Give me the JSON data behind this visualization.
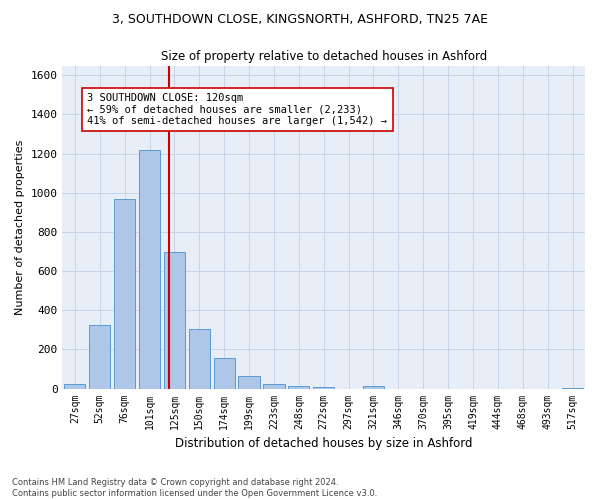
{
  "title1": "3, SOUTHDOWN CLOSE, KINGSNORTH, ASHFORD, TN25 7AE",
  "title2": "Size of property relative to detached houses in Ashford",
  "xlabel": "Distribution of detached houses by size in Ashford",
  "ylabel": "Number of detached properties",
  "footnote": "Contains HM Land Registry data © Crown copyright and database right 2024.\nContains public sector information licensed under the Open Government Licence v3.0.",
  "bar_labels": [
    "27sqm",
    "52sqm",
    "76sqm",
    "101sqm",
    "125sqm",
    "150sqm",
    "174sqm",
    "199sqm",
    "223sqm",
    "248sqm",
    "272sqm",
    "297sqm",
    "321sqm",
    "346sqm",
    "370sqm",
    "395sqm",
    "419sqm",
    "444sqm",
    "468sqm",
    "493sqm",
    "517sqm"
  ],
  "bar_values": [
    25,
    325,
    970,
    1220,
    700,
    305,
    155,
    65,
    25,
    15,
    10,
    0,
    15,
    0,
    0,
    0,
    0,
    0,
    0,
    0,
    5
  ],
  "bar_color": "#aec6e8",
  "bar_edge_color": "#5b9bd5",
  "bar_width": 0.85,
  "property_line_x": 3.77,
  "property_line_color": "#cc0000",
  "ylim": [
    0,
    1650
  ],
  "yticks": [
    0,
    200,
    400,
    600,
    800,
    1000,
    1200,
    1400,
    1600
  ],
  "annotation_text": "3 SOUTHDOWN CLOSE: 120sqm\n← 59% of detached houses are smaller (2,233)\n41% of semi-detached houses are larger (1,542) →",
  "annotation_box_color": "#ffffff",
  "annotation_box_edge": "#cc0000",
  "grid_color": "#c8d4e8",
  "background_color": "#e8eef8"
}
